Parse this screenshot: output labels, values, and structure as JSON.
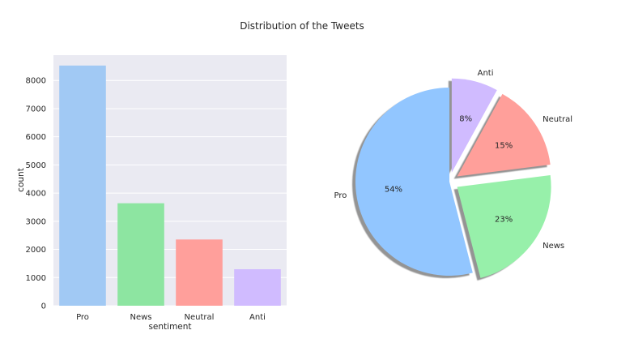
{
  "title": "Distribution of the Tweets",
  "chart_data": [
    {
      "type": "bar",
      "xlabel": "sentiment",
      "ylabel": "count",
      "categories": [
        "Pro",
        "News",
        "Neutral",
        "Anti"
      ],
      "values": [
        8530,
        3640,
        2353,
        1296
      ],
      "ylim": [
        0,
        8900
      ],
      "yticks": [
        0,
        1000,
        2000,
        3000,
        4000,
        5000,
        6000,
        7000,
        8000
      ],
      "grid": true,
      "colors": [
        "#a1c9f4",
        "#8de5a1",
        "#ff9f9b",
        "#d0bbff"
      ]
    },
    {
      "type": "pie",
      "labels": [
        "Pro",
        "News",
        "Neutral",
        "Anti"
      ],
      "values": [
        54,
        23,
        15,
        8
      ],
      "percent_labels": [
        "54%",
        "23%",
        "15%",
        "8%"
      ],
      "explode": [
        0,
        0.1,
        0.1,
        0.1
      ],
      "shadow": true,
      "colors": [
        "#92c6ff",
        "#97f0aa",
        "#ff9f9a",
        "#d0bbff"
      ]
    }
  ]
}
